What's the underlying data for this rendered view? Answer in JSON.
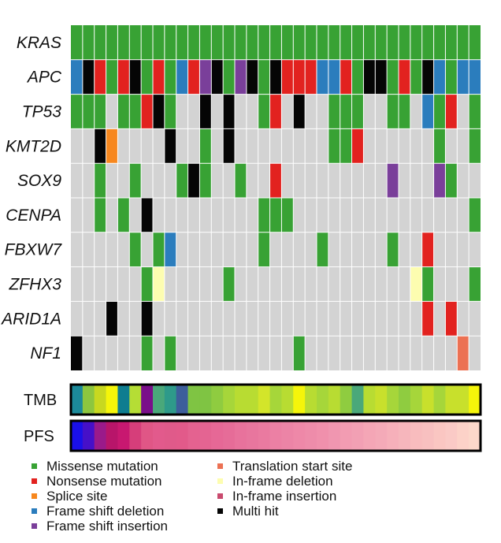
{
  "chart_data": {
    "type": "heatmap",
    "title": "",
    "genes": [
      "KRAS",
      "APC",
      "TP53",
      "KMT2D",
      "SOX9",
      "CENPA",
      "FBXW7",
      "ZFHX3",
      "ARID1A",
      "NF1"
    ],
    "alteration_types": {
      "M": "Missense mutation",
      "N": "Nonsense mutation",
      "S": "Splice site",
      "D": "Frame shift deletion",
      "I": "Frame shift insertion",
      "T": "Translation start site",
      "F": "In-frame deletion",
      "J": "In-frame insertion",
      "X": "Multi hit",
      ".": "No alteration"
    },
    "colors": {
      "M": "#38a234",
      "N": "#e2221f",
      "S": "#f7871e",
      "D": "#2b7dbd",
      "I": "#7a3f9a",
      "T": "#ec7153",
      "F": "#fdfdb0",
      "J": "#c94a6e",
      "X": "#050505",
      ".": "#d3d3d3"
    },
    "samples": 35,
    "matrix": [
      "MMMMMMMMMMMMMMMMMMMMMMMMMMMMMMMMMMM",
      "DXNMNXMNMDNIXMIXMXNNNDDNMXXMNMXDMDD",
      "MMM.MMNXM..X.X..MN.X..MMM..MM.DMN.M",
      "..XS....X..M.X........MMN......M..M",
      "..M..M...MXM..M..N.........I...IM..",
      "..M.M.X.........MMM...............M",
      ".....M.MD.......M....M.....M..N....",
      "......MF.....M...............FM...M",
      "...X..X.......................N.N..",
      "X.....M.M..........M.............T."
    ],
    "tracks": [
      {
        "label": "TMB",
        "colors": [
          "#1c8a9a",
          "#8dc63f",
          "#c8d820",
          "#f5f50a",
          "#0e7d90",
          "#b5dd35",
          "#7a0f8a",
          "#4aa87a",
          "#2e9a8a",
          "#3d5e9b",
          "#7fc443",
          "#7fc443",
          "#8fcc40",
          "#a6d63a",
          "#b8dc32",
          "#b8dc32",
          "#d3e52a",
          "#a6d63a",
          "#b8dc32",
          "#f5f50a",
          "#b8dc32",
          "#a6d63a",
          "#b8dc32",
          "#8fcc40",
          "#4aa87a",
          "#b8dc32",
          "#c8e02c",
          "#a6d63a",
          "#8fcc40",
          "#a6d63a",
          "#c8e02c",
          "#a6d63a",
          "#c8e02c",
          "#c8e02c",
          "#f5f50a"
        ]
      },
      {
        "label": "PFS",
        "colors": [
          "#1a10e8",
          "#4610c8",
          "#9a1a8a",
          "#b8156a",
          "#c81870",
          "#d63e7a",
          "#e05686",
          "#e25a8c",
          "#e05a8a",
          "#e25a8a",
          "#e46290",
          "#e46492",
          "#e66896",
          "#e66c98",
          "#e8729c",
          "#e8769e",
          "#ea7aa0",
          "#ec80a4",
          "#ec84a6",
          "#ee88a8",
          "#ee8caa",
          "#f090ac",
          "#f096b0",
          "#f29cb2",
          "#f2a0b4",
          "#f4a6b6",
          "#f4aab8",
          "#f6b0ba",
          "#f6b6bc",
          "#f8bcbe",
          "#f8c0c0",
          "#fac6c2",
          "#facac6",
          "#fcd2c8",
          "#fcd8ca"
        ]
      }
    ]
  },
  "legend": [
    {
      "key": "M",
      "label": "Missense mutation"
    },
    {
      "key": "N",
      "label": "Nonsense mutation"
    },
    {
      "key": "S",
      "label": "Splice site"
    },
    {
      "key": "D",
      "label": "Frame shift deletion"
    },
    {
      "key": "I",
      "label": "Frame shift insertion"
    },
    {
      "key": "T",
      "label": "Translation start site"
    },
    {
      "key": "F",
      "label": "In-frame deletion"
    },
    {
      "key": "J",
      "label": "In-frame insertion"
    },
    {
      "key": "X",
      "label": "Multi hit"
    }
  ]
}
